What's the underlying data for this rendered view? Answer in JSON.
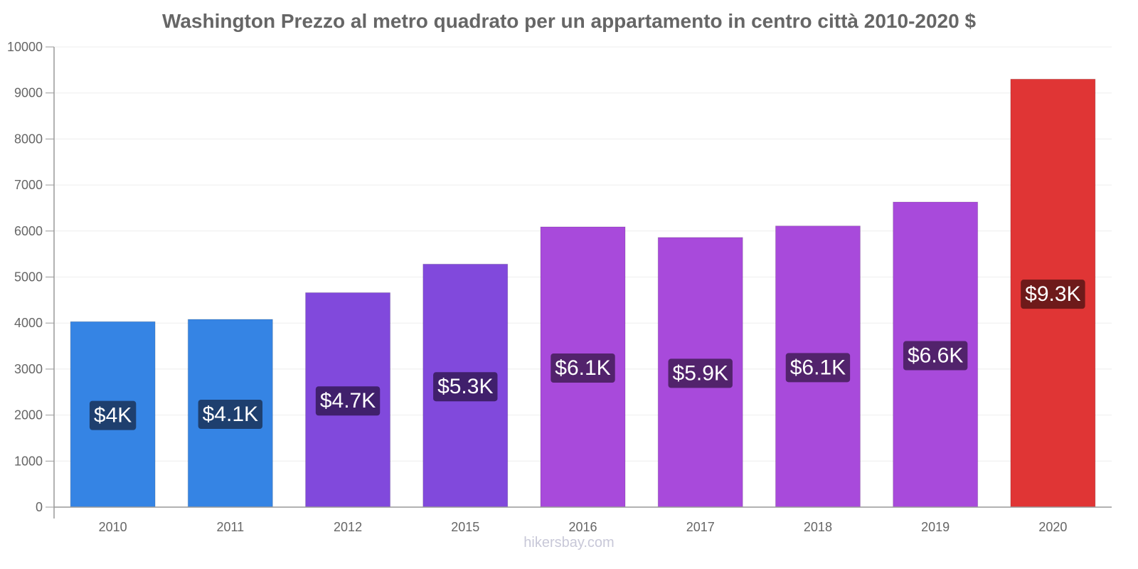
{
  "chart_data": {
    "type": "bar",
    "title": "Washington Prezzo al metro quadrato per un appartamento in centro città 2010-2020 $",
    "categories": [
      "2010",
      "2011",
      "2012",
      "2015",
      "2016",
      "2017",
      "2018",
      "2019",
      "2020"
    ],
    "values": [
      4030,
      4080,
      4660,
      5280,
      6090,
      5860,
      6110,
      6630,
      9300
    ],
    "data_labels": [
      "$4K",
      "$4.1K",
      "$4.7K",
      "$5.3K",
      "$6.1K",
      "$5.9K",
      "$6.1K",
      "$6.6K",
      "$9.3K"
    ],
    "bar_colors": [
      "#3584e4",
      "#3584e4",
      "#8149dc",
      "#8149dc",
      "#a84adb",
      "#a84adb",
      "#a84adb",
      "#a84adb",
      "#e03535"
    ],
    "label_bg_colors": [
      "#1e3f6e",
      "#1e3f6e",
      "#40206c",
      "#40206c",
      "#52236c",
      "#52236c",
      "#52236c",
      "#52236c",
      "#6e1a1a"
    ],
    "ylim": [
      0,
      10000
    ],
    "yticks": [
      "0",
      "1000",
      "2000",
      "3000",
      "4000",
      "5000",
      "6000",
      "7000",
      "8000",
      "9000",
      "10000"
    ],
    "xlabel": "",
    "ylabel": "",
    "grid": true,
    "legend": "none"
  },
  "watermark": "hikersbay.com"
}
